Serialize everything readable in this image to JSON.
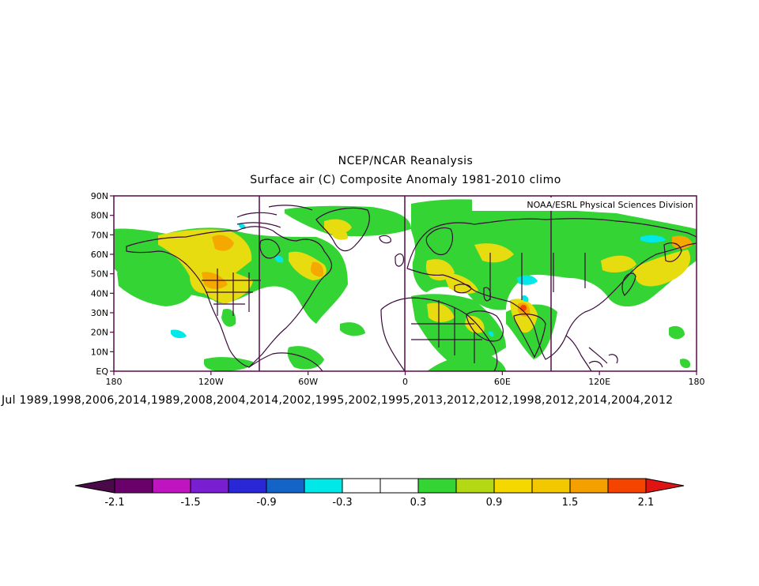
{
  "header": {
    "title": "NCEP/NCAR Reanalysis",
    "subtitle": "Surface air (C) Composite Anomaly 1981-2010 climo"
  },
  "credit": "NOAA/ESRL Physical Sciences Division",
  "map": {
    "lat_labels": [
      "90N",
      "80N",
      "70N",
      "60N",
      "50N",
      "40N",
      "30N",
      "20N",
      "10N",
      "EQ"
    ],
    "lon_labels": [
      "180",
      "120W",
      "60W",
      "0",
      "60E",
      "120E",
      "180"
    ],
    "lat_range": [
      0,
      90
    ],
    "lon_range": [
      -180,
      180
    ]
  },
  "composite_dates": "Jul 1989,1998,2006,2014,1989,2008,2004,2014,2002,1995,2002,1995,2013,2012,2012,1998,2012,2014,2004,2012",
  "colorbar": {
    "labels": [
      "-2.1",
      "-1.5",
      "-0.9",
      "-0.3",
      "0.3",
      "0.9",
      "1.5",
      "2.1"
    ],
    "colors": [
      "#6a006a",
      "#c014c0",
      "#7a1ed2",
      "#2a28d6",
      "#1464c8",
      "#00e8e8",
      "#ffffff",
      "#ffffff",
      "#34d434",
      "#b4d814",
      "#f4d800",
      "#f4c800",
      "#f4a000",
      "#f44400"
    ],
    "under_color": "#4a0a4a",
    "over_color": "#e01414"
  },
  "colors": {
    "frame": "#5a0a4a",
    "coast": "#3a0a3a",
    "positive_low": "#34d434",
    "positive_mid": "#e6dc10",
    "positive_high": "#f4a800",
    "negative_low": "#00e8e8"
  }
}
